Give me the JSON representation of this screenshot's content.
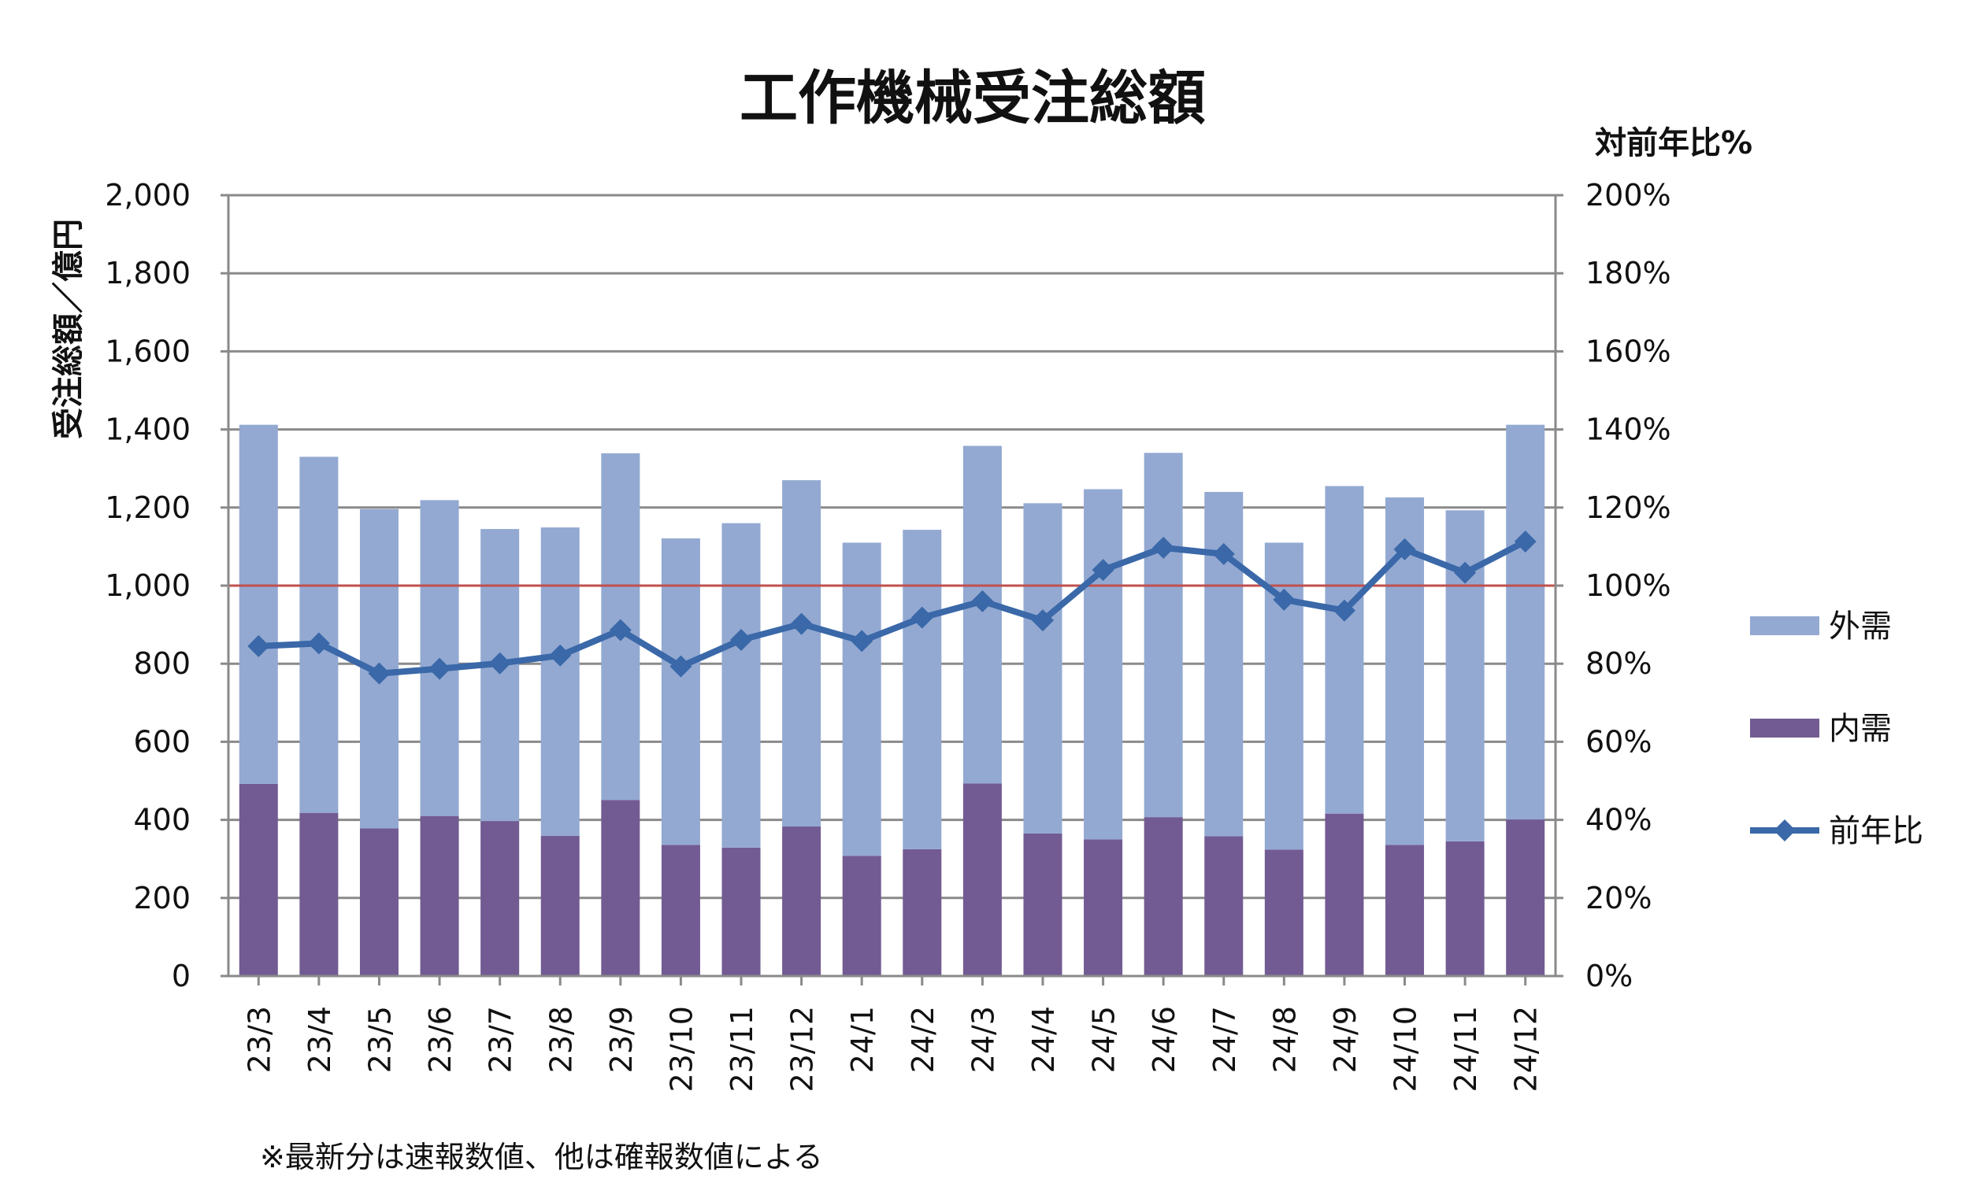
{
  "chart_data": {
    "type": "bar",
    "title": "工作機械受注総額",
    "ylabel": "受注総額／億円",
    "y2label": "対前年比%",
    "categories": [
      "23/3",
      "23/4",
      "23/5",
      "23/6",
      "23/7",
      "23/8",
      "23/9",
      "23/10",
      "23/11",
      "23/12",
      "24/1",
      "24/2",
      "24/3",
      "24/4",
      "24/5",
      "24/6",
      "24/7",
      "24/8",
      "24/9",
      "24/10",
      "24/11",
      "24/12"
    ],
    "series": [
      {
        "name": "内需",
        "kind": "stacked-bar",
        "color": "#725B92",
        "values": [
          492,
          418,
          378,
          410,
          397,
          359,
          451,
          336,
          329,
          383,
          308,
          325,
          493,
          365,
          350,
          407,
          358,
          324,
          416,
          336,
          345,
          401
        ]
      },
      {
        "name": "外需",
        "kind": "stacked-bar",
        "color": "#93A9D2",
        "values": [
          920,
          912,
          818,
          809,
          748,
          790,
          888,
          785,
          831,
          887,
          802,
          818,
          865,
          846,
          897,
          933,
          882,
          786,
          839,
          890,
          848,
          1011
        ]
      },
      {
        "name": "前年比",
        "kind": "line",
        "axis": "right",
        "color": "#3A68A8",
        "values": [
          84.5,
          85.2,
          77.5,
          78.7,
          80.1,
          82.1,
          88.6,
          79.3,
          86.1,
          90.2,
          85.8,
          91.8,
          96.0,
          91.1,
          104.0,
          109.7,
          108.1,
          96.4,
          93.6,
          109.3,
          103.3,
          111.3
        ]
      }
    ],
    "ylim": [
      0,
      2000
    ],
    "y_ticks": [
      "0",
      "200",
      "400",
      "600",
      "800",
      "1,000",
      "1,200",
      "1,400",
      "1,600",
      "1,800",
      "2,000"
    ],
    "y2lim": [
      0,
      200
    ],
    "y2_ticks": [
      "0%",
      "20%",
      "40%",
      "60%",
      "80%",
      "100%",
      "120%",
      "140%",
      "160%",
      "180%",
      "200%"
    ],
    "reference_line": {
      "value": 100,
      "axis": "right",
      "color": "#C0504D"
    },
    "grid": true,
    "legend": {
      "position": "right",
      "entries": [
        {
          "label": "外需",
          "kind": "patch",
          "color": "#93A9D2"
        },
        {
          "label": "内需",
          "kind": "patch",
          "color": "#725B92"
        },
        {
          "label": "前年比",
          "kind": "line-marker",
          "color": "#3A68A8"
        }
      ]
    },
    "footnote": "※最新分は速報数値、他は確報数値による"
  }
}
